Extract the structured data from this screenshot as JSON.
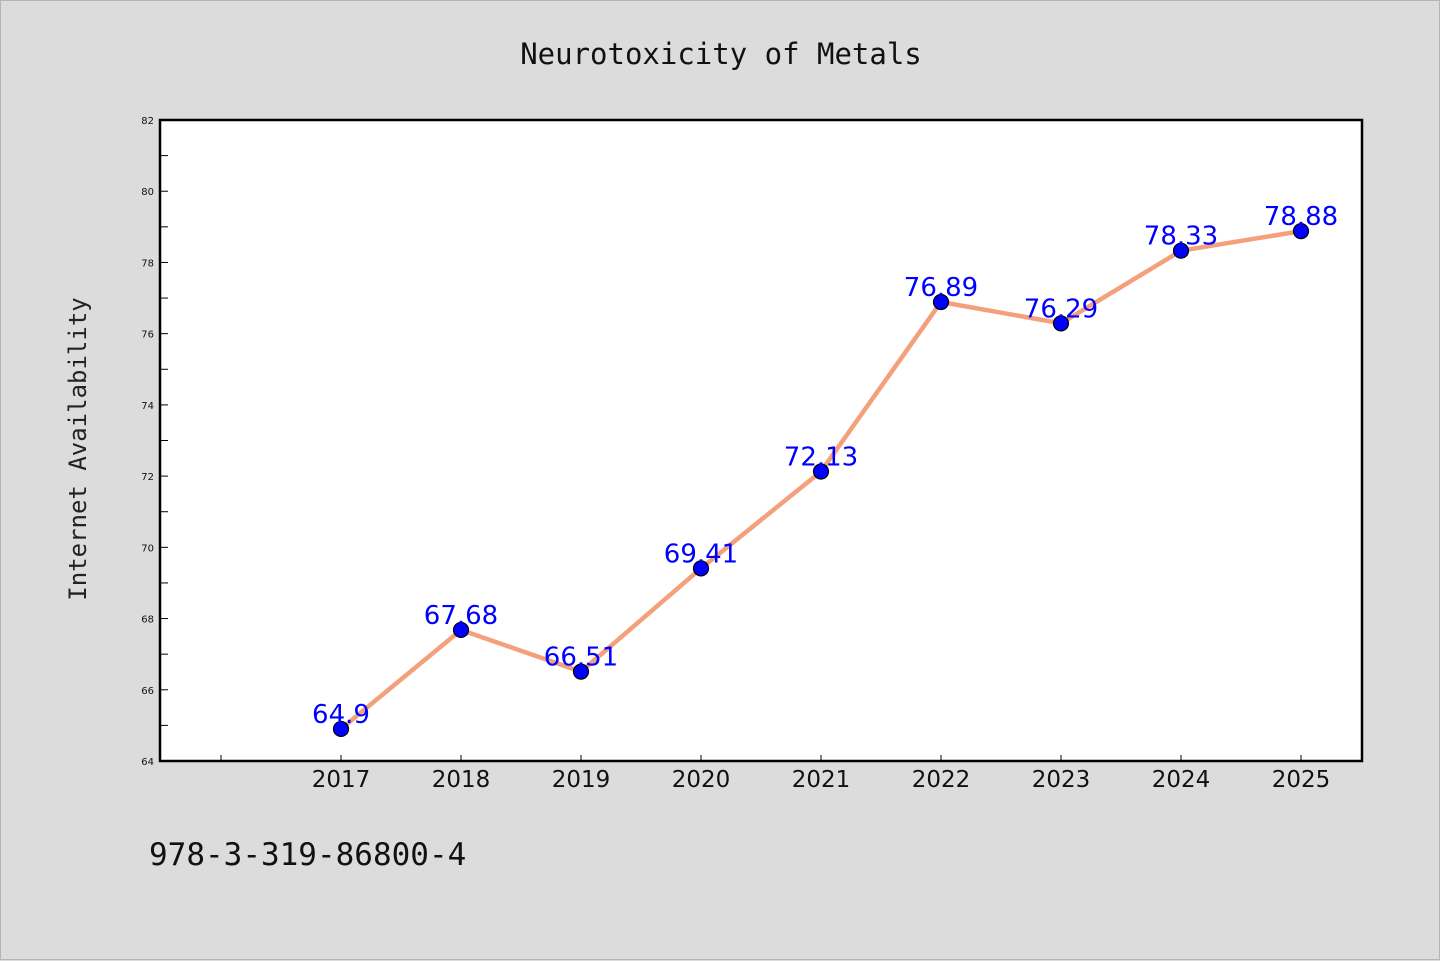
{
  "chart_data": {
    "type": "line",
    "title": "Neurotoxicity of Metals",
    "xlabel": "",
    "ylabel": "Internet Availability",
    "categories": [
      "2017",
      "2018",
      "2019",
      "2020",
      "2021",
      "2022",
      "2023",
      "2024",
      "2025"
    ],
    "series": [
      {
        "values": [
          64.9,
          67.68,
          66.51,
          69.41,
          72.13,
          76.89,
          76.29,
          78.33,
          78.88
        ],
        "labels": [
          "64.9",
          "67.68",
          "66.51",
          "69.41",
          "72.13",
          "76.89",
          "76.29",
          "78.33",
          "78.88"
        ],
        "line_color": "#f4a07c",
        "marker_color": "#0000ff"
      }
    ],
    "ylim": [
      64,
      82
    ],
    "yticks": [
      "64",
      "66",
      "68",
      "70",
      "72",
      "74",
      "76",
      "78",
      "80",
      "82"
    ],
    "grid": false,
    "legend": "none"
  },
  "footnote": "978-3-319-86800-4"
}
